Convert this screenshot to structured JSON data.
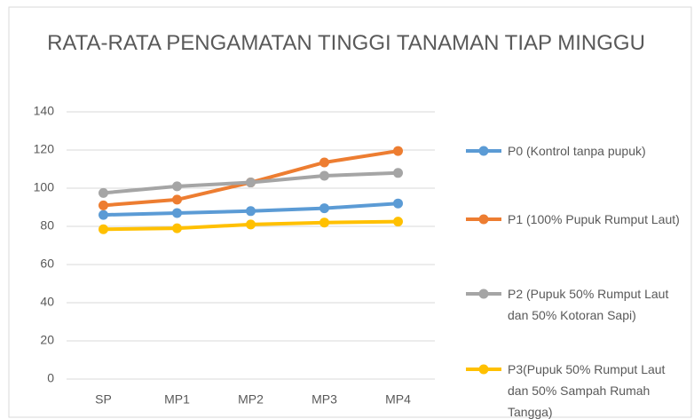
{
  "chart_data": {
    "type": "line",
    "title": "RATA-RATA PENGAMATAN TINGGI TANAMAN TIAP MINGGU",
    "categories": [
      "SP",
      "MP1",
      "MP2",
      "MP3",
      "MP4"
    ],
    "series": [
      {
        "name": "P0 (Kontrol tanpa pupuk)",
        "color": "#5b9bd5",
        "values": [
          86,
          87,
          88,
          89.5,
          92
        ]
      },
      {
        "name": "P1 (100% Pupuk Rumput Laut)",
        "color": "#ed7d31",
        "values": [
          91,
          94,
          103,
          113.5,
          119.5
        ]
      },
      {
        "name": "P2 (Pupuk 50% Rumput Laut dan 50% Kotoran Sapi)",
        "color": "#a5a5a5",
        "values": [
          97.5,
          101,
          103,
          106.5,
          108
        ]
      },
      {
        "name": "P3(Pupuk 50% Rumput Laut dan 50% Sampah Rumah Tangga)",
        "color": "#ffc000",
        "values": [
          78.5,
          79,
          81,
          82,
          82.5
        ]
      }
    ],
    "ylim": [
      0,
      140
    ],
    "yticks": [
      0,
      20,
      40,
      60,
      80,
      100,
      120,
      140
    ],
    "grid": true,
    "legend": "right"
  }
}
